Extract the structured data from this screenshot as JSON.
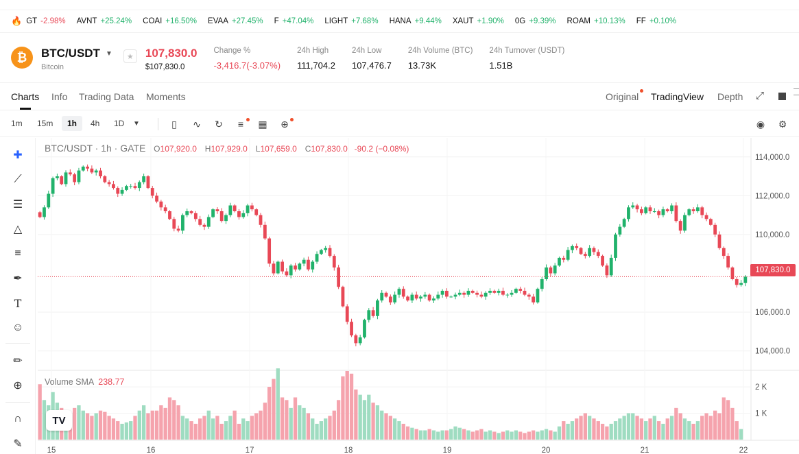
{
  "ticker": [
    {
      "sym": "GT",
      "chg": "-2.98%",
      "dir": "down"
    },
    {
      "sym": "AVNT",
      "chg": "+25.24%",
      "dir": "up"
    },
    {
      "sym": "COAI",
      "chg": "+16.50%",
      "dir": "up"
    },
    {
      "sym": "EVAA",
      "chg": "+27.45%",
      "dir": "up"
    },
    {
      "sym": "F",
      "chg": "+47.04%",
      "dir": "up"
    },
    {
      "sym": "LIGHT",
      "chg": "+7.68%",
      "dir": "up"
    },
    {
      "sym": "HANA",
      "chg": "+9.44%",
      "dir": "up"
    },
    {
      "sym": "XAUT",
      "chg": "+1.90%",
      "dir": "up"
    },
    {
      "sym": "0G",
      "chg": "+9.39%",
      "dir": "up"
    },
    {
      "sym": "ROAM",
      "chg": "+10.13%",
      "dir": "up"
    },
    {
      "sym": "FF",
      "chg": "+0.10%",
      "dir": "up"
    }
  ],
  "header": {
    "logo_glyph": "₿",
    "pair": "BTC/USDT",
    "coin_name": "Bitcoin",
    "price": "107,830.0",
    "price_usd": "$107,830.0",
    "stats": [
      {
        "label": "Change %",
        "value": "-3,416.7(-3.07%)",
        "color": "red"
      },
      {
        "label": "24h High",
        "value": "111,704.2"
      },
      {
        "label": "24h Low",
        "value": "107,476.7"
      },
      {
        "label": "24h Volume (BTC)",
        "value": "13.73K"
      },
      {
        "label": "24h Turnover (USDT)",
        "value": "1.51B"
      }
    ]
  },
  "tabs": {
    "charts": "Charts",
    "info": "Info",
    "trading_data": "Trading Data",
    "moments": "Moments",
    "original": "Original",
    "tradingview": "TradingView",
    "depth": "Depth"
  },
  "toolbar": {
    "timeframes": [
      "1m",
      "15m",
      "1h",
      "4h",
      "1D"
    ],
    "active_timeframe": "1h"
  },
  "legend": {
    "title": "BTC/USDT · 1h · GATE",
    "o_label": "O",
    "o": "107,920.0",
    "h_label": "H",
    "h": "107,929.0",
    "l_label": "L",
    "l": "107,659.0",
    "c_label": "C",
    "c": "107,830.0",
    "change": "-90.2 (−0.08%)"
  },
  "volume_legend": {
    "label": "Volume SMA",
    "value": "238.77"
  },
  "price_tag": "107,830.0",
  "colors": {
    "up": "#21b26b",
    "down": "#e84856",
    "up_vol": "#9fdcc1",
    "down_vol": "#f5a3ad"
  },
  "chart_data": {
    "type": "candlestick",
    "title": "BTC/USDT · 1h · GATE",
    "x_ticks": [
      "15",
      "16",
      "17",
      "18",
      "19",
      "20",
      "21",
      "22"
    ],
    "y_ticks": [
      "114,000.0",
      "112,000.0",
      "110,000.0",
      "106,000.0",
      "104,000.0"
    ],
    "ylim": [
      103000,
      114700
    ],
    "vol_ticks": [
      "2 K",
      "1 K"
    ],
    "vol_ylim": [
      0,
      2600
    ],
    "last_price": 107830,
    "closes": [
      110900,
      111400,
      112100,
      112900,
      113000,
      112600,
      113200,
      113100,
      112700,
      113300,
      113500,
      113400,
      113200,
      113300,
      113000,
      112700,
      112600,
      112400,
      112100,
      112300,
      112500,
      112500,
      112400,
      112700,
      113000,
      112400,
      112000,
      111700,
      111400,
      111200,
      110800,
      110300,
      110200,
      111000,
      111200,
      111100,
      110800,
      110500,
      110400,
      110900,
      111300,
      111200,
      110700,
      111000,
      111500,
      111200,
      110900,
      111100,
      111500,
      111300,
      111000,
      110500,
      109800,
      108500,
      108000,
      108600,
      108100,
      107900,
      108400,
      108200,
      108500,
      108700,
      108200,
      108600,
      109000,
      109200,
      109300,
      108900,
      108300,
      107300,
      106300,
      105500,
      104800,
      104400,
      104700,
      105600,
      106100,
      105800,
      106600,
      107000,
      106800,
      106500,
      106900,
      107200,
      106800,
      106600,
      106900,
      106700,
      106800,
      106900,
      106600,
      106700,
      106900,
      107100,
      106800,
      106800,
      106900,
      107000,
      106900,
      107100,
      107000,
      106900,
      106800,
      107000,
      107100,
      107000,
      107100,
      106900,
      106900,
      107000,
      107200,
      107100,
      106900,
      106800,
      106500,
      107200,
      107700,
      108300,
      108000,
      108400,
      108800,
      108700,
      109200,
      109400,
      109300,
      109000,
      108900,
      109300,
      109100,
      108900,
      108400,
      107900,
      108800,
      110000,
      110400,
      110800,
      111400,
      111500,
      111300,
      111100,
      111400,
      111200,
      111200,
      111000,
      111300,
      111200,
      111500,
      110700,
      110200,
      111000,
      111300,
      111200,
      111400,
      111000,
      110800,
      110500,
      110000,
      109300,
      108900,
      108300,
      107700,
      107400,
      107500,
      107830
    ],
    "volumes": [
      2100,
      1500,
      1300,
      1800,
      1400,
      1200,
      1100,
      1000,
      1200,
      1300,
      1100,
      1000,
      900,
      1000,
      1100,
      1050,
      900,
      800,
      700,
      600,
      650,
      700,
      900,
      1100,
      1300,
      1000,
      1100,
      1100,
      1300,
      1200,
      1600,
      1500,
      1300,
      900,
      800,
      700,
      600,
      800,
      900,
      1100,
      800,
      900,
      600,
      700,
      900,
      1100,
      600,
      800,
      700,
      900,
      1000,
      1100,
      1400,
      2000,
      2300,
      2700,
      1600,
      1500,
      1200,
      1600,
      1300,
      1200,
      1000,
      800,
      600,
      700,
      800,
      900,
      1100,
      1500,
      2400,
      2600,
      2500,
      1900,
      1700,
      1500,
      1700,
      1400,
      1300,
      1100,
      1000,
      900,
      800,
      700,
      600,
      500,
      450,
      400,
      350,
      350,
      400,
      350,
      300,
      350,
      350,
      400,
      500,
      450,
      400,
      350,
      300,
      350,
      400,
      300,
      350,
      300,
      250,
      300,
      350,
      300,
      350,
      300,
      250,
      300,
      350,
      300,
      350,
      400,
      350,
      300,
      500,
      700,
      600,
      700,
      800,
      900,
      1000,
      900,
      800,
      700,
      600,
      500,
      600,
      700,
      800,
      900,
      1000,
      1000,
      900,
      800,
      700,
      800,
      900,
      700,
      600,
      800,
      900,
      1200,
      1000,
      800,
      700,
      600,
      700,
      900,
      1000,
      900,
      1100,
      1000,
      1600,
      1500,
      1200,
      700,
      400
    ]
  }
}
